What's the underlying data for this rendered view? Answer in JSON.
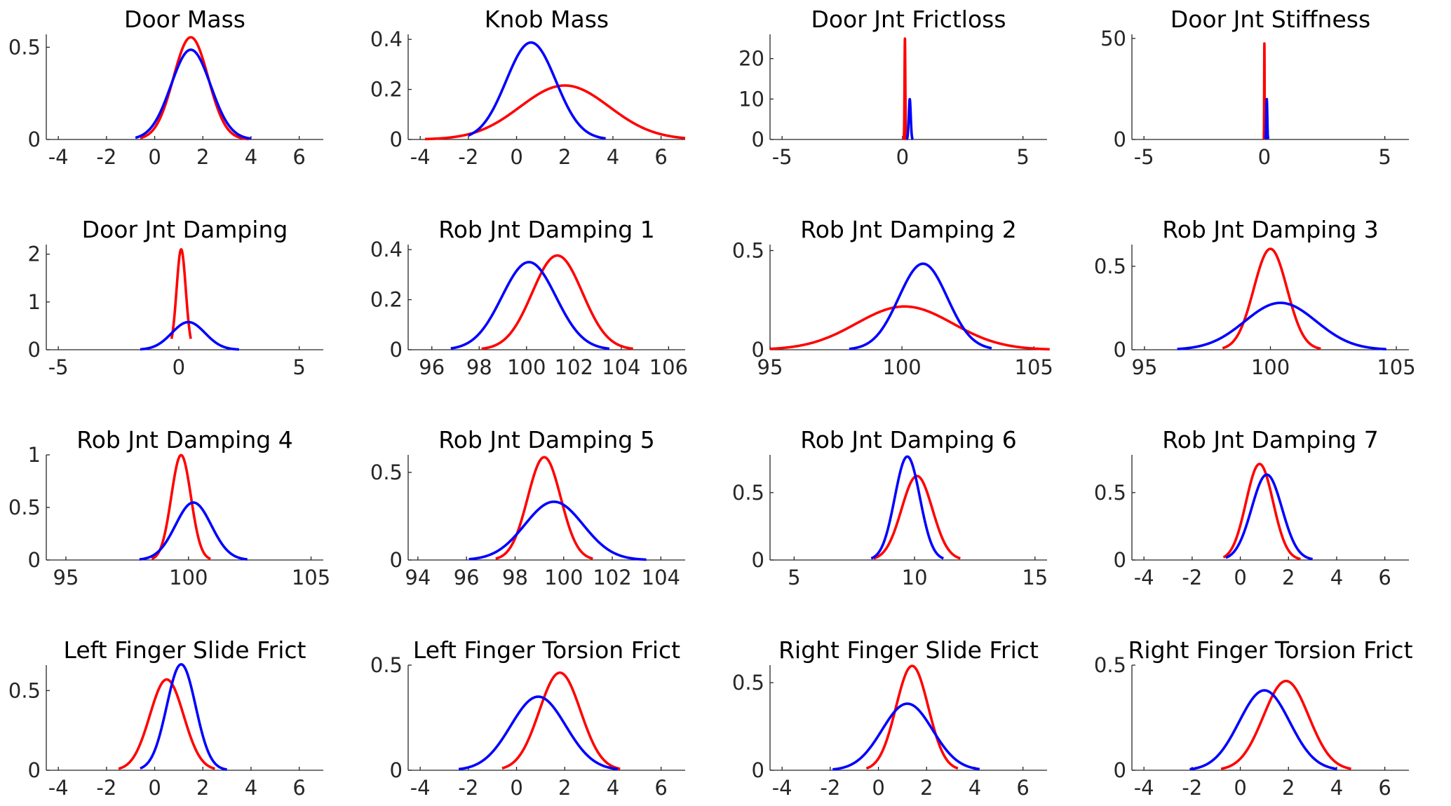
{
  "chart_data": [
    {
      "type": "line",
      "title": "Door Mass",
      "xlim": [
        -4.5,
        7
      ],
      "ylim": [
        0,
        0.57
      ],
      "xticks": [
        -4,
        -2,
        0,
        2,
        4,
        6
      ],
      "yticks": [
        0,
        0.5
      ],
      "series": [
        {
          "name": "red",
          "color": "#ff0000",
          "mean": 1.5,
          "sigma": 0.72,
          "range": [
            -0.6,
            3.9
          ]
        },
        {
          "name": "blue",
          "color": "#0000ff",
          "mean": 1.5,
          "sigma": 0.82,
          "range": [
            -0.8,
            4.0
          ]
        }
      ]
    },
    {
      "type": "line",
      "title": "Knob Mass",
      "xlim": [
        -4.5,
        7
      ],
      "ylim": [
        0,
        0.42
      ],
      "xticks": [
        -4,
        -2,
        0,
        2,
        4,
        6
      ],
      "yticks": [
        0,
        0.2,
        0.4
      ],
      "series": [
        {
          "name": "red",
          "color": "#ff0000",
          "mean": 2.0,
          "sigma": 1.85,
          "range": [
            -3.8,
            7.0
          ]
        },
        {
          "name": "blue",
          "color": "#0000ff",
          "mean": 0.6,
          "sigma": 1.03,
          "range": [
            -2.0,
            3.7
          ]
        }
      ]
    },
    {
      "type": "line",
      "title": "Door Jnt Frictloss",
      "xlim": [
        -5.5,
        6
      ],
      "ylim": [
        0,
        26
      ],
      "xticks": [
        -5,
        0,
        5
      ],
      "yticks": [
        0,
        10,
        20
      ],
      "series": [
        {
          "name": "red",
          "color": "#ff0000",
          "mean": 0.1,
          "sigma": 0.016,
          "range": [
            0.04,
            0.16
          ]
        },
        {
          "name": "blue",
          "color": "#0000ff",
          "mean": 0.3,
          "sigma": 0.04,
          "range": [
            0.17,
            0.43
          ]
        }
      ]
    },
    {
      "type": "line",
      "title": "Door Jnt Stiffness",
      "xlim": [
        -5.5,
        6
      ],
      "ylim": [
        0,
        52
      ],
      "xticks": [
        -5,
        0,
        5
      ],
      "yticks": [
        0,
        50
      ],
      "series": [
        {
          "name": "red",
          "color": "#ff0000",
          "mean": 0.0,
          "sigma": 0.0084,
          "range": [
            -0.03,
            0.03
          ]
        },
        {
          "name": "blue",
          "color": "#0000ff",
          "mean": 0.1,
          "sigma": 0.02,
          "range": [
            0.04,
            0.16
          ]
        }
      ]
    },
    {
      "type": "line",
      "title": "Door Jnt Damping",
      "xlim": [
        -5.5,
        6
      ],
      "ylim": [
        0,
        2.2
      ],
      "xticks": [
        -5,
        0,
        5
      ],
      "yticks": [
        0,
        1,
        2
      ],
      "series": [
        {
          "name": "red",
          "color": "#ff0000",
          "mean": 0.1,
          "sigma": 0.19,
          "range": [
            -0.3,
            0.5
          ]
        },
        {
          "name": "blue",
          "color": "#0000ff",
          "mean": 0.4,
          "sigma": 0.69,
          "range": [
            -1.6,
            2.5
          ]
        }
      ]
    },
    {
      "type": "line",
      "title": "Rob Jnt Damping 1",
      "xlim": [
        95,
        106.7
      ],
      "ylim": [
        0,
        0.42
      ],
      "xticks": [
        96,
        98,
        100,
        102,
        104,
        106
      ],
      "yticks": [
        0,
        0.2,
        0.4
      ],
      "series": [
        {
          "name": "red",
          "color": "#ff0000",
          "mean": 101.3,
          "sigma": 1.06,
          "range": [
            98.1,
            104.5
          ]
        },
        {
          "name": "blue",
          "color": "#0000ff",
          "mean": 100.1,
          "sigma": 1.14,
          "range": [
            96.8,
            103.5
          ]
        }
      ]
    },
    {
      "type": "line",
      "title": "Rob Jnt Damping 2",
      "xlim": [
        95,
        105.5
      ],
      "ylim": [
        0,
        0.53
      ],
      "xticks": [
        95,
        100,
        105
      ],
      "yticks": [
        0,
        0.5
      ],
      "series": [
        {
          "name": "red",
          "color": "#ff0000",
          "mean": 100.1,
          "sigma": 1.83,
          "range": [
            95.0,
            105.6
          ]
        },
        {
          "name": "blue",
          "color": "#0000ff",
          "mean": 100.8,
          "sigma": 0.92,
          "range": [
            98.0,
            103.4
          ]
        }
      ]
    },
    {
      "type": "line",
      "title": "Rob Jnt Damping 3",
      "xlim": [
        94.5,
        105.5
      ],
      "ylim": [
        0,
        0.63
      ],
      "xticks": [
        95,
        100,
        105
      ],
      "yticks": [
        0,
        0.5
      ],
      "series": [
        {
          "name": "red",
          "color": "#ff0000",
          "mean": 100.0,
          "sigma": 0.66,
          "range": [
            98.1,
            102.0
          ]
        },
        {
          "name": "blue",
          "color": "#0000ff",
          "mean": 100.4,
          "sigma": 1.42,
          "range": [
            96.3,
            104.6
          ]
        }
      ]
    },
    {
      "type": "line",
      "title": "Rob Jnt Damping 4",
      "xlim": [
        94.2,
        105.5
      ],
      "ylim": [
        0,
        1.0
      ],
      "xticks": [
        95,
        100,
        105
      ],
      "yticks": [
        0,
        0.5,
        1
      ],
      "series": [
        {
          "name": "red",
          "color": "#ff0000",
          "mean": 99.7,
          "sigma": 0.4,
          "range": [
            98.5,
            100.9
          ]
        },
        {
          "name": "blue",
          "color": "#0000ff",
          "mean": 100.2,
          "sigma": 0.73,
          "range": [
            98.0,
            102.4
          ]
        }
      ]
    },
    {
      "type": "line",
      "title": "Rob Jnt Damping 5",
      "xlim": [
        93.6,
        105
      ],
      "ylim": [
        0,
        0.6
      ],
      "xticks": [
        94,
        96,
        98,
        100,
        102,
        104
      ],
      "yticks": [
        0,
        0.5
      ],
      "series": [
        {
          "name": "red",
          "color": "#ff0000",
          "mean": 99.2,
          "sigma": 0.68,
          "range": [
            97.2,
            101.2
          ]
        },
        {
          "name": "blue",
          "color": "#0000ff",
          "mean": 99.6,
          "sigma": 1.2,
          "range": [
            96.1,
            103.4
          ]
        }
      ]
    },
    {
      "type": "line",
      "title": "Rob Jnt Damping 6",
      "xlim": [
        4,
        15.5
      ],
      "ylim": [
        0,
        0.78
      ],
      "xticks": [
        5,
        10,
        15
      ],
      "yticks": [
        0,
        0.5
      ],
      "series": [
        {
          "name": "red",
          "color": "#ff0000",
          "mean": 10.1,
          "sigma": 0.64,
          "range": [
            8.3,
            11.9
          ]
        },
        {
          "name": "blue",
          "color": "#0000ff",
          "mean": 9.7,
          "sigma": 0.52,
          "range": [
            8.2,
            11.2
          ]
        }
      ]
    },
    {
      "type": "line",
      "title": "Rob Jnt Damping 7",
      "xlim": [
        -4.5,
        7
      ],
      "ylim": [
        0,
        0.78
      ],
      "xticks": [
        -4,
        -2,
        0,
        2,
        4,
        6
      ],
      "yticks": [
        0,
        0.5
      ],
      "series": [
        {
          "name": "red",
          "color": "#ff0000",
          "mean": 0.8,
          "sigma": 0.56,
          "range": [
            -0.7,
            2.5
          ]
        },
        {
          "name": "blue",
          "color": "#0000ff",
          "mean": 1.1,
          "sigma": 0.63,
          "range": [
            -0.6,
            3.0
          ]
        }
      ]
    },
    {
      "type": "line",
      "title": "Left Finger Slide Frict",
      "xlim": [
        -4.5,
        7
      ],
      "ylim": [
        0,
        0.66
      ],
      "xticks": [
        -4,
        -2,
        0,
        2,
        4,
        6
      ],
      "yticks": [
        0,
        0.5
      ],
      "series": [
        {
          "name": "red",
          "color": "#ff0000",
          "mean": 0.5,
          "sigma": 0.7,
          "range": [
            -1.5,
            2.5
          ]
        },
        {
          "name": "blue",
          "color": "#0000ff",
          "mean": 1.1,
          "sigma": 0.6,
          "range": [
            -0.6,
            3.0
          ]
        }
      ]
    },
    {
      "type": "line",
      "title": "Left Finger Torsion Frict",
      "xlim": [
        -4.5,
        7
      ],
      "ylim": [
        0,
        0.5
      ],
      "xticks": [
        -4,
        -2,
        0,
        2,
        4,
        6
      ],
      "yticks": [
        0,
        0.5
      ],
      "series": [
        {
          "name": "red",
          "color": "#ff0000",
          "mean": 1.8,
          "sigma": 0.86,
          "range": [
            -0.6,
            4.3
          ]
        },
        {
          "name": "blue",
          "color": "#0000ff",
          "mean": 0.9,
          "sigma": 1.14,
          "range": [
            -2.4,
            4.2
          ]
        }
      ]
    },
    {
      "type": "line",
      "title": "Right Finger Slide Frict",
      "xlim": [
        -4.5,
        7
      ],
      "ylim": [
        0,
        0.6
      ],
      "xticks": [
        -4,
        -2,
        0,
        2,
        4,
        6
      ],
      "yticks": [
        0,
        0.5
      ],
      "series": [
        {
          "name": "red",
          "color": "#ff0000",
          "mean": 1.4,
          "sigma": 0.67,
          "range": [
            -0.5,
            3.3
          ]
        },
        {
          "name": "blue",
          "color": "#0000ff",
          "mean": 1.2,
          "sigma": 1.05,
          "range": [
            -1.9,
            4.2
          ]
        }
      ]
    },
    {
      "type": "line",
      "title": "Right Finger Torsion Frict",
      "xlim": [
        -4.5,
        7
      ],
      "ylim": [
        0,
        0.5
      ],
      "xticks": [
        -4,
        -2,
        0,
        2,
        4,
        6
      ],
      "yticks": [
        0,
        0.5
      ],
      "series": [
        {
          "name": "red",
          "color": "#ff0000",
          "mean": 1.9,
          "sigma": 0.94,
          "range": [
            -0.8,
            4.6
          ]
        },
        {
          "name": "blue",
          "color": "#0000ff",
          "mean": 1.0,
          "sigma": 1.05,
          "range": [
            -2.1,
            4.0
          ]
        }
      ]
    }
  ]
}
